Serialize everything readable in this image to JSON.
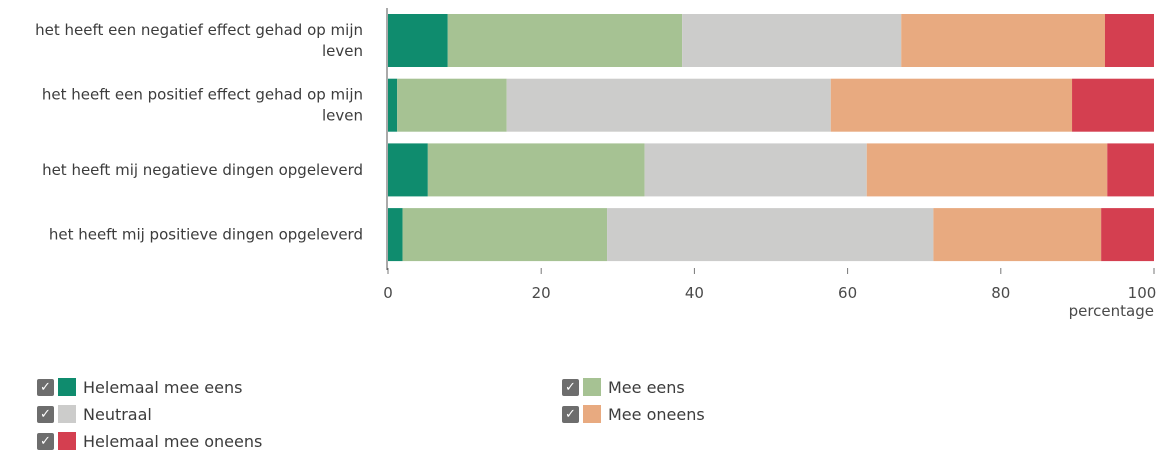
{
  "chart_data": {
    "type": "bar",
    "orientation": "horizontal",
    "stacked": true,
    "title": "",
    "xlabel": "percentage",
    "ylabel": "",
    "xlim": [
      0,
      100
    ],
    "x_ticks": [
      0,
      20,
      40,
      60,
      80,
      100
    ],
    "categories": [
      [
        "het heeft een negatief effect gehad op mijn",
        "leven"
      ],
      [
        "het heeft een positief effect gehad op mijn",
        "leven"
      ],
      [
        "het heeft mij negatieve dingen opgeleverd"
      ],
      [
        "het heeft mij positieve dingen opgeleverd"
      ]
    ],
    "series": [
      {
        "name": "Helemaal mee eens",
        "color": "#0f8c6e",
        "values": [
          7.8,
          1.2,
          5.2,
          1.9
        ]
      },
      {
        "name": "Mee eens",
        "color": "#a6c293",
        "values": [
          30.6,
          14.3,
          28.3,
          26.7
        ]
      },
      {
        "name": "Neutraal",
        "color": "#cccccb",
        "values": [
          28.6,
          42.3,
          29.0,
          42.6
        ]
      },
      {
        "name": "Mee oneens",
        "color": "#e8aa80",
        "values": [
          26.6,
          31.5,
          31.4,
          21.9
        ]
      },
      {
        "name": "Helemaal mee oneens",
        "color": "#d43f50",
        "values": [
          6.4,
          10.7,
          6.1,
          6.9
        ]
      }
    ],
    "grid": false,
    "legend_position": "bottom"
  },
  "legend": {
    "checkmark": "✓",
    "items": [
      {
        "label": "Helemaal mee eens",
        "color": "#0f8c6e"
      },
      {
        "label": "Mee eens",
        "color": "#a6c293"
      },
      {
        "label": "Neutraal",
        "color": "#cccccb"
      },
      {
        "label": "Mee oneens",
        "color": "#e8aa80"
      },
      {
        "label": "Helemaal mee oneens",
        "color": "#d43f50"
      }
    ]
  }
}
